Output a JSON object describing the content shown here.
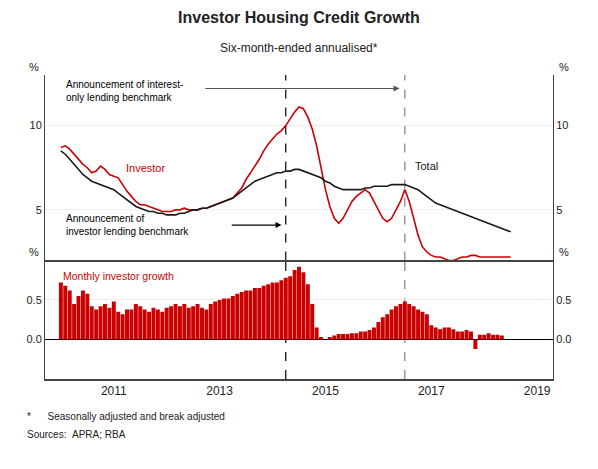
{
  "chart_data": [
    {
      "type": "line",
      "title": "Investor Housing Credit Growth",
      "subtitle": "Six-month-ended annualised*",
      "footnotes": [
        "*      Seasonally adjusted and break adjusted",
        "Sources:  APRA; RBA"
      ],
      "series": [
        {
          "name": "Investor",
          "color": "#cc0000",
          "x": [
            2010.0,
            2010.083,
            2010.167,
            2010.25,
            2010.333,
            2010.417,
            2010.5,
            2010.583,
            2010.667,
            2010.75,
            2010.833,
            2010.917,
            2011.0,
            2011.083,
            2011.167,
            2011.25,
            2011.333,
            2011.417,
            2011.5,
            2011.583,
            2011.667,
            2011.75,
            2011.833,
            2011.917,
            2012.0,
            2012.083,
            2012.167,
            2012.25,
            2012.333,
            2012.417,
            2012.5,
            2012.583,
            2012.667,
            2012.75,
            2012.833,
            2012.917,
            2013.0,
            2013.083,
            2013.167,
            2013.25,
            2013.333,
            2013.417,
            2013.5,
            2013.583,
            2013.667,
            2013.75,
            2013.833,
            2013.917,
            2014.0,
            2014.083,
            2014.167,
            2014.25,
            2014.333,
            2014.417,
            2014.5,
            2014.583,
            2014.667,
            2014.75,
            2014.833,
            2014.917,
            2015.0,
            2015.083,
            2015.167,
            2015.25,
            2015.333,
            2015.417,
            2015.5,
            2015.583,
            2015.667,
            2015.75,
            2015.833,
            2015.917,
            2016.0,
            2016.083,
            2016.167,
            2016.25,
            2016.333,
            2016.417,
            2016.5,
            2016.583,
            2016.667,
            2016.75,
            2016.833,
            2016.917,
            2017.0,
            2017.083,
            2017.167,
            2017.25,
            2017.333,
            2017.417,
            2017.5,
            2017.583,
            2017.667,
            2017.75,
            2017.833,
            2017.917,
            2018.0,
            2018.083,
            2018.167,
            2018.25,
            2018.333,
            2018.417,
            2018.5
          ],
          "values": [
            8.7,
            8.8,
            8.6,
            8.3,
            8.0,
            7.7,
            7.5,
            7.2,
            7.3,
            7.6,
            7.4,
            7.1,
            7.0,
            6.9,
            6.5,
            6.1,
            5.8,
            5.5,
            5.3,
            5.3,
            5.2,
            5.1,
            5.0,
            4.9,
            4.9,
            4.9,
            5.0,
            5.0,
            5.1,
            5.0,
            5.0,
            5.0,
            5.1,
            5.1,
            5.2,
            5.3,
            5.4,
            5.5,
            5.6,
            5.7,
            6.0,
            6.3,
            6.8,
            7.2,
            7.6,
            8.0,
            8.5,
            8.9,
            9.2,
            9.5,
            9.7,
            10.0,
            10.4,
            10.8,
            11.1,
            11.0,
            10.5,
            9.8,
            8.8,
            7.5,
            6.2,
            5.2,
            4.5,
            4.2,
            4.5,
            5.0,
            5.5,
            5.8,
            6.0,
            6.2,
            6.0,
            5.5,
            5.0,
            4.5,
            4.3,
            4.5,
            5.0,
            5.5,
            6.2,
            5.5,
            4.5,
            3.5,
            2.8,
            2.5,
            2.3,
            2.2,
            2.2,
            2.1,
            2.0,
            2.0,
            2.1,
            2.2,
            2.2,
            2.3,
            2.3,
            2.2,
            2.2,
            2.2,
            2.2,
            2.2,
            2.2,
            2.2,
            2.2
          ]
        },
        {
          "name": "Total",
          "color": "#1a1a1a",
          "x": [
            2010.0,
            2010.083,
            2010.167,
            2010.25,
            2010.333,
            2010.417,
            2010.5,
            2010.583,
            2010.667,
            2010.75,
            2010.833,
            2010.917,
            2011.0,
            2011.083,
            2011.167,
            2011.25,
            2011.333,
            2011.417,
            2011.5,
            2011.583,
            2011.667,
            2011.75,
            2011.833,
            2011.917,
            2012.0,
            2012.083,
            2012.167,
            2012.25,
            2012.333,
            2012.417,
            2012.5,
            2012.583,
            2012.667,
            2012.75,
            2012.833,
            2012.917,
            2013.0,
            2013.083,
            2013.167,
            2013.25,
            2013.333,
            2013.417,
            2013.5,
            2013.583,
            2013.667,
            2013.75,
            2013.833,
            2013.917,
            2014.0,
            2014.083,
            2014.167,
            2014.25,
            2014.333,
            2014.417,
            2014.5,
            2014.583,
            2014.667,
            2014.75,
            2014.833,
            2014.917,
            2015.0,
            2015.083,
            2015.167,
            2015.25,
            2015.333,
            2015.417,
            2015.5,
            2015.583,
            2015.667,
            2015.75,
            2015.833,
            2015.917,
            2016.0,
            2016.083,
            2016.167,
            2016.25,
            2016.333,
            2016.417,
            2016.5,
            2016.583,
            2016.667,
            2016.75,
            2016.833,
            2016.917,
            2017.0,
            2017.083,
            2017.167,
            2017.25,
            2017.333,
            2017.417,
            2017.5,
            2017.583,
            2017.667,
            2017.75,
            2017.833,
            2017.917,
            2018.0,
            2018.083,
            2018.167,
            2018.25,
            2018.333,
            2018.417,
            2018.5
          ],
          "values": [
            8.5,
            8.3,
            8.0,
            7.7,
            7.4,
            7.1,
            6.9,
            6.7,
            6.6,
            6.5,
            6.4,
            6.3,
            6.2,
            6.0,
            5.8,
            5.6,
            5.4,
            5.2,
            5.1,
            5.0,
            4.9,
            4.9,
            4.8,
            4.8,
            4.7,
            4.7,
            4.7,
            4.8,
            4.8,
            4.9,
            5.0,
            5.0,
            5.1,
            5.1,
            5.2,
            5.3,
            5.4,
            5.5,
            5.6,
            5.7,
            5.9,
            6.1,
            6.3,
            6.5,
            6.7,
            6.8,
            6.9,
            7.0,
            7.1,
            7.2,
            7.2,
            7.3,
            7.3,
            7.4,
            7.4,
            7.3,
            7.2,
            7.1,
            7.0,
            6.9,
            6.7,
            6.6,
            6.4,
            6.3,
            6.2,
            6.2,
            6.2,
            6.2,
            6.2,
            6.3,
            6.3,
            6.4,
            6.4,
            6.4,
            6.4,
            6.5,
            6.5,
            6.5,
            6.5,
            6.4,
            6.3,
            6.2,
            6.0,
            5.8,
            5.6,
            5.4,
            5.3,
            5.2,
            5.1,
            5.0,
            4.9,
            4.8,
            4.7,
            4.6,
            4.5,
            4.4,
            4.3,
            4.2,
            4.1,
            4.0,
            3.9,
            3.8,
            3.7
          ]
        }
      ],
      "xlim": [
        2009.7,
        2019.3
      ],
      "ylim": [
        2,
        13
      ],
      "yticks": [
        5,
        10
      ],
      "y2lim": [
        2,
        13
      ],
      "y2ticks": [
        5,
        10
      ],
      "ylabel": "%",
      "y2label": "%",
      "vlines": [
        {
          "x": 2014.25,
          "color": "black",
          "label": "Announcement of\ninvestor lending benchmark"
        },
        {
          "x": 2016.5,
          "color": "gray",
          "label": "Announcement of interest-\nonly lending benchmark"
        }
      ],
      "grid": true,
      "tick_labels": "y"
    },
    {
      "type": "bar",
      "series": [
        {
          "name": "Monthly investor growth",
          "color": "#cc0000",
          "x": [
            2010.0,
            2010.083,
            2010.167,
            2010.25,
            2010.333,
            2010.417,
            2010.5,
            2010.583,
            2010.667,
            2010.75,
            2010.833,
            2010.917,
            2011.0,
            2011.083,
            2011.167,
            2011.25,
            2011.333,
            2011.417,
            2011.5,
            2011.583,
            2011.667,
            2011.75,
            2011.833,
            2011.917,
            2012.0,
            2012.083,
            2012.167,
            2012.25,
            2012.333,
            2012.417,
            2012.5,
            2012.583,
            2012.667,
            2012.75,
            2012.833,
            2012.917,
            2013.0,
            2013.083,
            2013.167,
            2013.25,
            2013.333,
            2013.417,
            2013.5,
            2013.583,
            2013.667,
            2013.75,
            2013.833,
            2013.917,
            2014.0,
            2014.083,
            2014.167,
            2014.25,
            2014.333,
            2014.417,
            2014.5,
            2014.583,
            2014.667,
            2014.75,
            2014.833,
            2014.917,
            2015.0,
            2015.083,
            2015.167,
            2015.25,
            2015.333,
            2015.417,
            2015.5,
            2015.583,
            2015.667,
            2015.75,
            2015.833,
            2015.917,
            2016.0,
            2016.083,
            2016.167,
            2016.25,
            2016.333,
            2016.417,
            2016.5,
            2016.583,
            2016.667,
            2016.75,
            2016.833,
            2016.917,
            2017.0,
            2017.083,
            2017.167,
            2017.25,
            2017.333,
            2017.417,
            2017.5,
            2017.583,
            2017.667,
            2017.75,
            2017.833,
            2017.917,
            2018.0,
            2018.083,
            2018.167,
            2018.25,
            2018.333
          ],
          "values": [
            0.72,
            0.68,
            0.62,
            0.45,
            0.55,
            0.62,
            0.58,
            0.42,
            0.38,
            0.42,
            0.45,
            0.4,
            0.48,
            0.35,
            0.32,
            0.38,
            0.38,
            0.45,
            0.42,
            0.38,
            0.35,
            0.4,
            0.38,
            0.35,
            0.4,
            0.42,
            0.45,
            0.42,
            0.45,
            0.4,
            0.42,
            0.45,
            0.4,
            0.38,
            0.45,
            0.48,
            0.5,
            0.52,
            0.52,
            0.55,
            0.58,
            0.6,
            0.62,
            0.62,
            0.65,
            0.65,
            0.68,
            0.7,
            0.72,
            0.72,
            0.75,
            0.78,
            0.8,
            0.88,
            0.92,
            0.85,
            0.7,
            0.45,
            0.15,
            0.03,
            0.0,
            0.03,
            0.05,
            0.07,
            0.07,
            0.07,
            0.08,
            0.08,
            0.1,
            0.1,
            0.12,
            0.15,
            0.22,
            0.28,
            0.32,
            0.38,
            0.42,
            0.45,
            0.48,
            0.45,
            0.42,
            0.38,
            0.35,
            0.32,
            0.18,
            0.15,
            0.13,
            0.15,
            0.15,
            0.13,
            0.1,
            0.1,
            0.12,
            0.1,
            -0.12,
            0.06,
            0.06,
            0.08,
            0.06,
            0.06,
            0.05
          ]
        }
      ],
      "xlim": [
        2009.7,
        2019.3
      ],
      "xticks": [
        2011,
        2013,
        2015,
        2017,
        2019
      ],
      "ylim": [
        -0.5,
        1.0
      ],
      "yticks": [
        {
          "value": 0.0,
          "label": "0.0"
        },
        0.5
      ],
      "y2lim": [
        -0.5,
        1.0
      ],
      "y2ticks": [
        {
          "value": 0.0,
          "label": "0.0"
        },
        0.5
      ],
      "ylabel": "%",
      "y2label": "%",
      "vlines": [
        {
          "x": 2014.25,
          "color": "black"
        },
        {
          "x": 2016.5,
          "color": "gray"
        }
      ],
      "grid": true
    }
  ]
}
